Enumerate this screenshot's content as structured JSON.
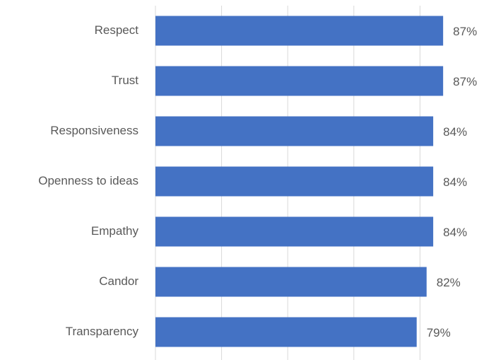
{
  "chart_data": {
    "type": "bar",
    "orientation": "horizontal",
    "categories": [
      "Respect",
      "Trust",
      "Responsiveness",
      "Openness to ideas",
      "Empathy",
      "Candor",
      "Transparency"
    ],
    "values": [
      87,
      87,
      84,
      84,
      84,
      82,
      79
    ],
    "value_labels": [
      "87%",
      "87%",
      "84%",
      "84%",
      "84%",
      "82%",
      "79%"
    ],
    "color": "#4472c4",
    "xlim": [
      0,
      100
    ],
    "xticks": [
      0,
      20,
      40,
      60,
      80
    ],
    "grid": true
  }
}
